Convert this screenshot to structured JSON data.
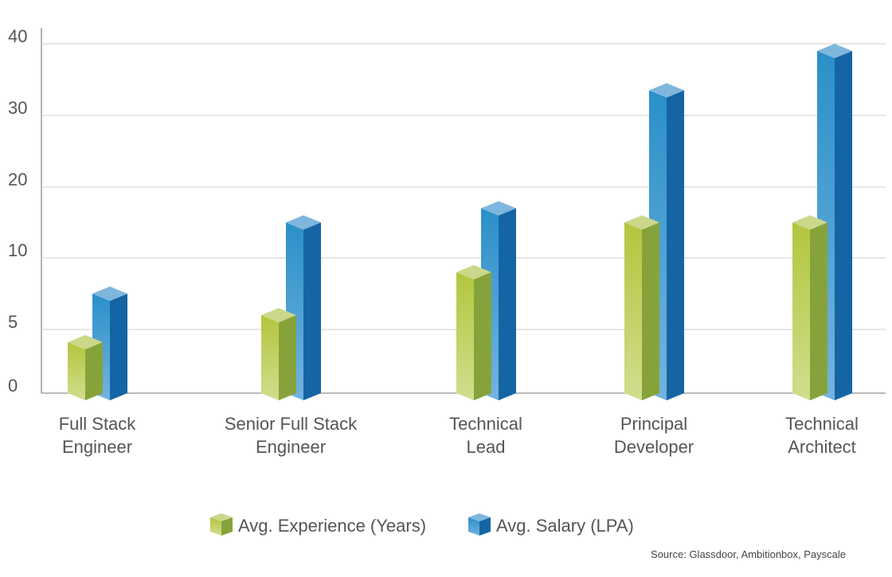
{
  "chart_data": {
    "type": "bar",
    "title": "",
    "xlabel": "",
    "ylabel": "",
    "y_ticks": [
      0,
      5,
      10,
      20,
      30,
      40
    ],
    "ylim": [
      0,
      40
    ],
    "grid": true,
    "categories": [
      [
        "Full Stack",
        "Engineer"
      ],
      [
        "Senior Full Stack",
        "Engineer"
      ],
      [
        "Technical",
        "Lead"
      ],
      [
        "Principal",
        "Developer"
      ],
      [
        "Technical",
        "Architect"
      ]
    ],
    "series": [
      {
        "name": "Avg. Experience (Years)",
        "values": [
          4,
          6,
          9,
          15,
          15
        ],
        "color": "#b3c53d",
        "side_color": "#86a33b"
      },
      {
        "name": "Avg. Salary (LPA)",
        "values": [
          7.5,
          15,
          17,
          33.5,
          39
        ],
        "color": "#2a90c8",
        "side_color": "#1565a5"
      }
    ],
    "legend_position": "bottom",
    "source": "Source: Glassdoor, Ambitionbox, Payscale"
  }
}
